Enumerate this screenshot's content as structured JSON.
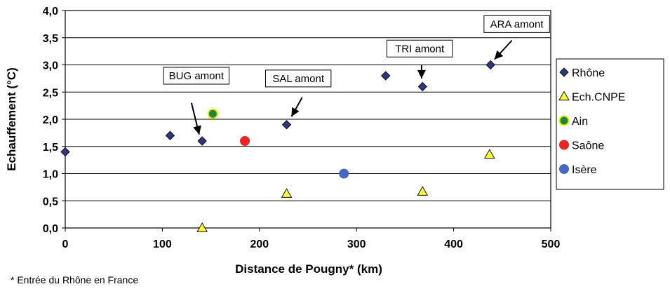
{
  "chart_data": {
    "type": "scatter",
    "xlabel": "Distance de Pougny* (km)",
    "ylabel": "Echauffement (°C)",
    "xlim": [
      0,
      500
    ],
    "ylim": [
      0,
      4
    ],
    "x_ticks": [
      "0",
      "100",
      "200",
      "300",
      "400",
      "500"
    ],
    "y_ticks": [
      "0,0",
      "0,5",
      "1,0",
      "1,5",
      "2,0",
      "2,5",
      "3,0",
      "3,5",
      "4,0"
    ],
    "grid": "horizontal",
    "legend_position": "right",
    "series": [
      {
        "name": "Rhône",
        "marker": "diamond",
        "color": "#2e3582",
        "points": [
          [
            0,
            1.4
          ],
          [
            108,
            1.7
          ],
          [
            141,
            1.6
          ],
          [
            228,
            1.9
          ],
          [
            330,
            2.8
          ],
          [
            368,
            2.6
          ],
          [
            438,
            3.0
          ]
        ]
      },
      {
        "name": "Ech.CNPE",
        "marker": "triangle",
        "color": "#ffff33",
        "points": [
          [
            141,
            0.0
          ],
          [
            228,
            0.63
          ],
          [
            368,
            0.67
          ],
          [
            437,
            1.35
          ]
        ]
      },
      {
        "name": "Ain",
        "marker": "circle",
        "color": "#1a8a3a",
        "stroke": "#e8e800",
        "points": [
          [
            152,
            2.1
          ]
        ]
      },
      {
        "name": "Saône",
        "marker": "circle",
        "color": "#ee2222",
        "points": [
          [
            185,
            1.6
          ]
        ]
      },
      {
        "name": "Isère",
        "marker": "circle",
        "color": "#4668c4",
        "points": [
          [
            287,
            1.0
          ]
        ]
      }
    ],
    "annotations": [
      {
        "text": "BUG amont",
        "box_center": [
          135,
          2.8
        ],
        "arrow_from": [
          130,
          2.3
        ],
        "arrow_to": [
          138,
          1.72
        ]
      },
      {
        "text": "SAL amont",
        "box_center": [
          240,
          2.75
        ],
        "arrow_from": [
          244,
          2.4
        ],
        "arrow_to": [
          233,
          2.05
        ]
      },
      {
        "text": "TRI amont",
        "box_center": [
          365,
          3.3
        ],
        "arrow_from": [
          367,
          3.0
        ],
        "arrow_to": [
          367,
          2.75
        ]
      },
      {
        "text": "ARA amont",
        "box_center": [
          465,
          3.75
        ],
        "arrow_from": [
          460,
          3.45
        ],
        "arrow_to": [
          442,
          3.1
        ]
      }
    ],
    "footnote": "* Entrée du Rhône en France"
  }
}
